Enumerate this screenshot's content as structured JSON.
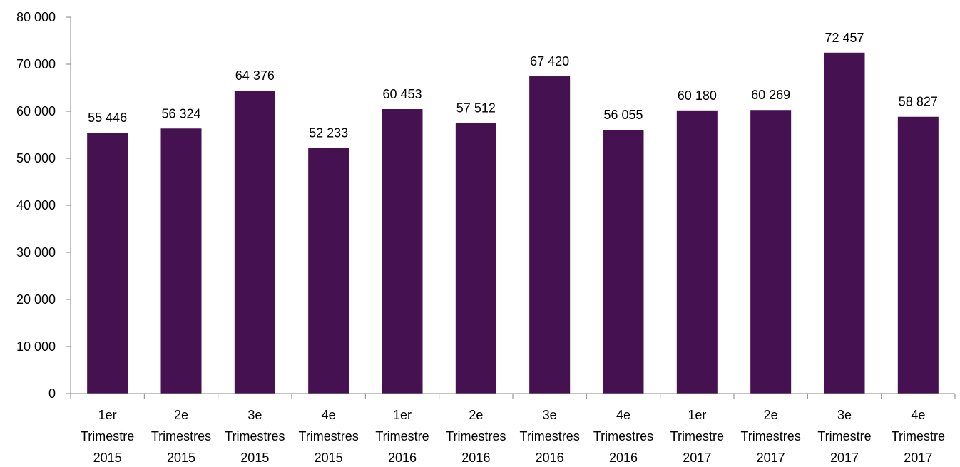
{
  "chart_data": {
    "type": "bar",
    "categories": [
      [
        "1er",
        "Trimestre",
        "2015"
      ],
      [
        "2e",
        "Trimestres",
        "2015"
      ],
      [
        "3e",
        "Trimestres",
        "2015"
      ],
      [
        "4e",
        "Trimestres",
        "2015"
      ],
      [
        "1er",
        "Trimestre",
        "2016"
      ],
      [
        "2e",
        "Trimestres",
        "2016"
      ],
      [
        "3e",
        "Trimestres",
        "2016"
      ],
      [
        "4e",
        "Trimestres",
        "2016"
      ],
      [
        "1er",
        "Trimestre",
        "2017"
      ],
      [
        "2e",
        "Trimestres",
        "2017"
      ],
      [
        "3e",
        "Trimestre",
        "2017"
      ],
      [
        "4e",
        "Trimestre",
        "2017"
      ]
    ],
    "values": [
      55446,
      56324,
      64376,
      52233,
      60453,
      57512,
      67420,
      56055,
      60180,
      60269,
      72457,
      58827
    ],
    "data_labels": [
      "55 446",
      "56 324",
      "64 376",
      "52 233",
      "60 453",
      "57 512",
      "67 420",
      "56 055",
      "60 180",
      "60 269",
      "72 457",
      "58 827"
    ],
    "title": "",
    "xlabel": "",
    "ylabel": "",
    "ylim": [
      0,
      80000
    ],
    "yticks": [
      0,
      10000,
      20000,
      30000,
      40000,
      50000,
      60000,
      70000,
      80000
    ],
    "ytick_labels": [
      "0",
      "10 000",
      "20 000",
      "30 000",
      "40 000",
      "50 000",
      "60 000",
      "70 000",
      "80 000"
    ],
    "grid": false,
    "legend": "none",
    "bar_color": "#451150",
    "axis_color": "#868686"
  }
}
